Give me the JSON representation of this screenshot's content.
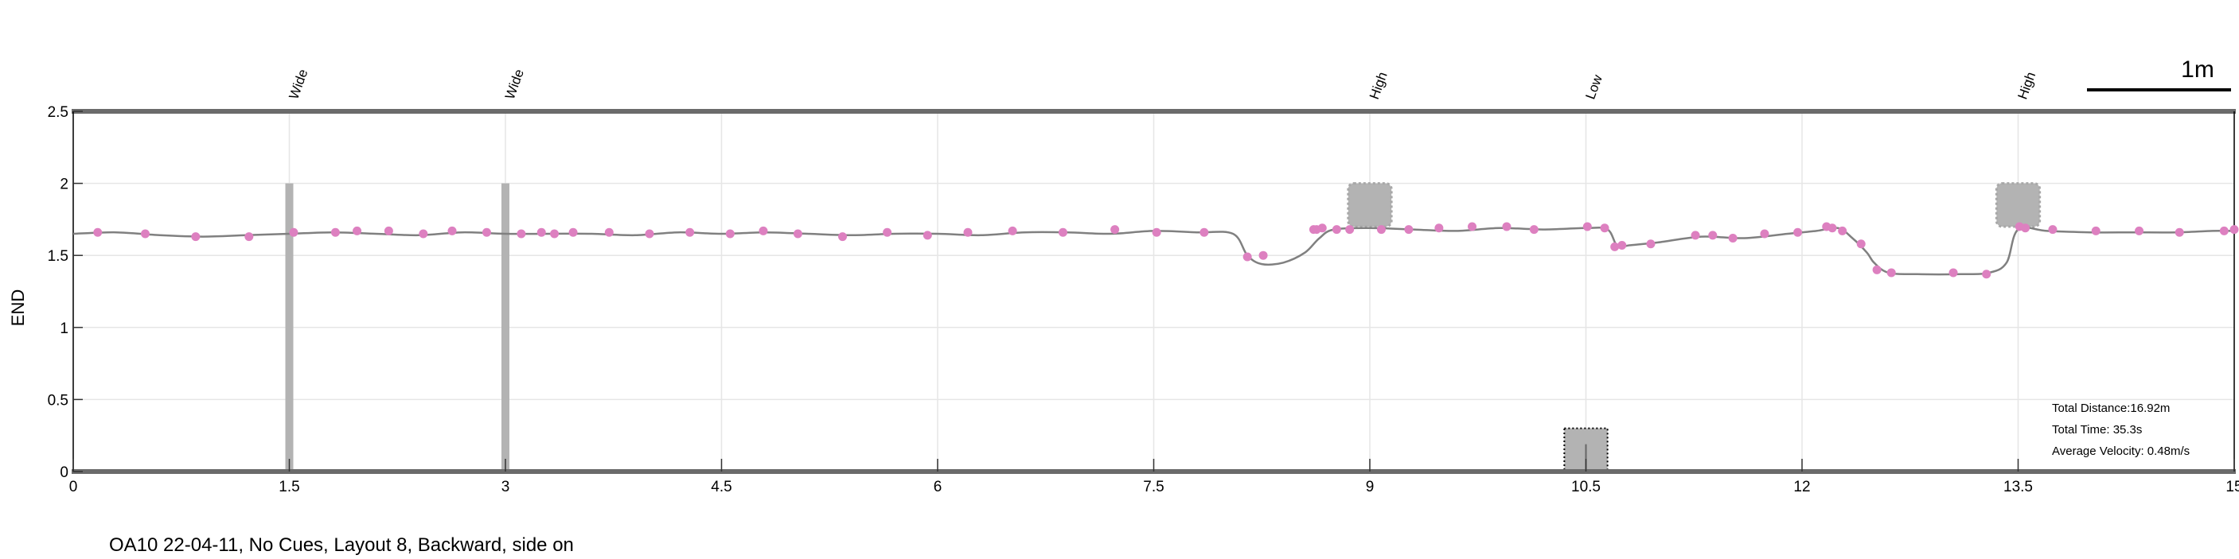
{
  "chart_data": {
    "type": "line",
    "ylabel": "END",
    "xlim": [
      0,
      15
    ],
    "ylim": [
      0,
      2.5
    ],
    "x_ticks": [
      "0",
      "1.5",
      "3",
      "4.5",
      "6",
      "7.5",
      "9",
      "10.5",
      "12",
      "13.5",
      "15"
    ],
    "x_tick_values": [
      0,
      1.5,
      3,
      4.5,
      6,
      7.5,
      9,
      10.5,
      12,
      13.5,
      15
    ],
    "y_ticks": [
      "0",
      "0.5",
      "1",
      "1.5",
      "2",
      "2.5"
    ],
    "y_tick_values": [
      0,
      0.5,
      1,
      1.5,
      2,
      2.5
    ],
    "grid": true,
    "scale_bar_label": "1m",
    "obstacle_labels": [
      {
        "x": 1.5,
        "label": "Wide"
      },
      {
        "x": 3.0,
        "label": "Wide"
      },
      {
        "x": 9.0,
        "label": "High"
      },
      {
        "x": 10.5,
        "label": "Low"
      },
      {
        "x": 13.5,
        "label": "High"
      }
    ],
    "obstacles": [
      {
        "type": "wide",
        "x": 1.5,
        "y_range": [
          0,
          2.0
        ]
      },
      {
        "type": "wide",
        "x": 3.0,
        "y_range": [
          0,
          2.0
        ]
      },
      {
        "type": "high",
        "x_range": [
          8.85,
          9.15
        ],
        "y_range": [
          1.7,
          2.0
        ]
      },
      {
        "type": "low",
        "x_range": [
          10.35,
          10.65
        ],
        "y_range": [
          0,
          0.3
        ]
      },
      {
        "type": "high",
        "x_range": [
          13.35,
          13.65
        ],
        "y_range": [
          1.7,
          2.0
        ]
      }
    ],
    "trajectory": {
      "x": [
        0,
        0.3,
        0.6,
        0.9,
        1.2,
        1.5,
        1.8,
        2.1,
        2.4,
        2.7,
        3.0,
        3.3,
        3.6,
        3.9,
        4.2,
        4.5,
        4.8,
        5.1,
        5.4,
        5.7,
        6.0,
        6.3,
        6.6,
        6.9,
        7.2,
        7.5,
        7.8,
        8.05,
        8.15,
        8.25,
        8.4,
        8.55,
        8.65,
        8.75,
        9.0,
        9.3,
        9.6,
        9.9,
        10.2,
        10.5,
        10.65,
        10.72,
        10.8,
        11.0,
        11.3,
        11.6,
        11.9,
        12.1,
        12.25,
        12.35,
        12.45,
        12.5,
        12.6,
        12.8,
        13.1,
        13.3,
        13.42,
        13.5,
        13.7,
        14.0,
        14.3,
        14.6,
        14.85,
        15.0
      ],
      "y": [
        1.65,
        1.66,
        1.64,
        1.63,
        1.64,
        1.65,
        1.66,
        1.65,
        1.64,
        1.66,
        1.65,
        1.65,
        1.65,
        1.64,
        1.66,
        1.65,
        1.66,
        1.65,
        1.64,
        1.65,
        1.65,
        1.64,
        1.66,
        1.66,
        1.65,
        1.67,
        1.66,
        1.65,
        1.5,
        1.44,
        1.45,
        1.52,
        1.62,
        1.68,
        1.69,
        1.68,
        1.67,
        1.69,
        1.68,
        1.69,
        1.68,
        1.56,
        1.57,
        1.59,
        1.63,
        1.62,
        1.65,
        1.67,
        1.69,
        1.62,
        1.52,
        1.45,
        1.38,
        1.37,
        1.37,
        1.38,
        1.45,
        1.68,
        1.67,
        1.66,
        1.66,
        1.66,
        1.67,
        1.67
      ]
    },
    "step_markers": {
      "x": [
        0.17,
        0.5,
        0.85,
        1.22,
        1.53,
        1.82,
        1.97,
        2.19,
        2.43,
        2.63,
        2.87,
        3.11,
        3.25,
        3.34,
        3.47,
        3.72,
        4.0,
        4.28,
        4.56,
        4.79,
        5.03,
        5.34,
        5.65,
        5.93,
        6.21,
        6.52,
        6.87,
        7.23,
        7.52,
        7.85,
        8.15,
        8.26,
        8.61,
        8.63,
        8.67,
        8.77,
        8.86,
        9.08,
        9.27,
        9.48,
        9.71,
        9.95,
        10.14,
        10.51,
        10.63,
        10.7,
        10.75,
        10.95,
        11.26,
        11.38,
        11.52,
        11.74,
        11.97,
        12.17,
        12.21,
        12.28,
        12.41,
        12.52,
        12.62,
        13.05,
        13.28,
        13.51,
        13.55,
        13.74,
        14.04,
        14.34,
        14.62,
        14.93,
        15.0
      ],
      "y": [
        1.66,
        1.65,
        1.63,
        1.63,
        1.66,
        1.66,
        1.67,
        1.67,
        1.65,
        1.67,
        1.66,
        1.65,
        1.66,
        1.65,
        1.66,
        1.66,
        1.65,
        1.66,
        1.65,
        1.67,
        1.65,
        1.63,
        1.66,
        1.64,
        1.66,
        1.67,
        1.66,
        1.68,
        1.66,
        1.66,
        1.49,
        1.5,
        1.68,
        1.68,
        1.69,
        1.68,
        1.68,
        1.68,
        1.68,
        1.69,
        1.7,
        1.7,
        1.68,
        1.7,
        1.69,
        1.56,
        1.57,
        1.58,
        1.64,
        1.64,
        1.62,
        1.65,
        1.66,
        1.7,
        1.69,
        1.67,
        1.58,
        1.4,
        1.38,
        1.38,
        1.37,
        1.7,
        1.69,
        1.68,
        1.67,
        1.67,
        1.66,
        1.67,
        1.68
      ]
    },
    "stats": {
      "distance": "Total Distance:16.92m",
      "time": "Total Time: 35.3s",
      "velocity": "Average Velocity: 0.48m/s"
    },
    "caption": "OA10 22-04-11, No Cues, Layout 8, Backward, side on",
    "colors": {
      "trajectory": "#808080",
      "markers": "#dd80c0",
      "obstacle_fill": "#b3b3b3",
      "axis_band": "#6b6b6b",
      "grid": "#e6e6e6"
    }
  }
}
